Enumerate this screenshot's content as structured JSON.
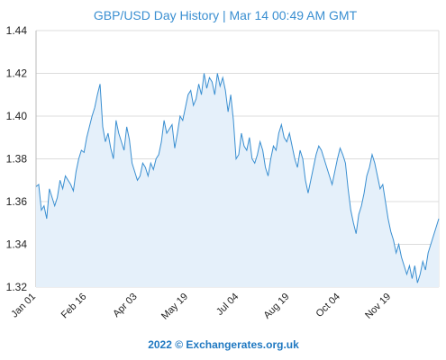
{
  "chart_data": {
    "type": "area",
    "title": "GBP/USD  Day History | Mar 14 00:49 AM GMT",
    "xlabel": "",
    "ylabel": "",
    "ylim": [
      1.32,
      1.44
    ],
    "yticks": [
      "1.32",
      "1.34",
      "1.36",
      "1.38",
      "1.40",
      "1.42",
      "1.44"
    ],
    "xticks": [
      "Jan 01",
      "Feb 16",
      "Apr 03",
      "May 19",
      "Jul 04",
      "Aug 19",
      "Oct 04",
      "Nov 19"
    ],
    "grid": true,
    "legend": "none",
    "series": [
      {
        "values": [
          1.367,
          1.368,
          1.356,
          1.358,
          1.352,
          1.366,
          1.362,
          1.358,
          1.362,
          1.37,
          1.366,
          1.372,
          1.37,
          1.368,
          1.365,
          1.374,
          1.38,
          1.384,
          1.383,
          1.39,
          1.395,
          1.4,
          1.404,
          1.41,
          1.415,
          1.395,
          1.388,
          1.392,
          1.385,
          1.38,
          1.398,
          1.392,
          1.388,
          1.384,
          1.395,
          1.389,
          1.378,
          1.374,
          1.37,
          1.372,
          1.378,
          1.376,
          1.372,
          1.378,
          1.375,
          1.38,
          1.382,
          1.388,
          1.398,
          1.392,
          1.394,
          1.396,
          1.385,
          1.392,
          1.4,
          1.398,
          1.404,
          1.41,
          1.412,
          1.405,
          1.408,
          1.415,
          1.41,
          1.42,
          1.413,
          1.418,
          1.416,
          1.41,
          1.42,
          1.414,
          1.418,
          1.412,
          1.402,
          1.41,
          1.398,
          1.38,
          1.382,
          1.392,
          1.386,
          1.384,
          1.39,
          1.38,
          1.378,
          1.382,
          1.388,
          1.384,
          1.376,
          1.372,
          1.38,
          1.386,
          1.384,
          1.392,
          1.396,
          1.39,
          1.388,
          1.392,
          1.386,
          1.38,
          1.376,
          1.384,
          1.38,
          1.37,
          1.364,
          1.37,
          1.376,
          1.382,
          1.386,
          1.384,
          1.38,
          1.376,
          1.372,
          1.368,
          1.374,
          1.38,
          1.385,
          1.382,
          1.378,
          1.366,
          1.356,
          1.35,
          1.345,
          1.354,
          1.358,
          1.364,
          1.372,
          1.376,
          1.382,
          1.378,
          1.372,
          1.366,
          1.368,
          1.36,
          1.352,
          1.346,
          1.342,
          1.336,
          1.34,
          1.334,
          1.33,
          1.326,
          1.33,
          1.324,
          1.33,
          1.322,
          1.326,
          1.332,
          1.328,
          1.336,
          1.34,
          1.344,
          1.348,
          1.352
        ]
      }
    ]
  },
  "footer": "2022 © Exchangerates.org.uk",
  "colors": {
    "line": "#3a8fd1",
    "fill": "#e5f0fa",
    "title": "#3a8fd1",
    "footer": "#1f78c1"
  }
}
